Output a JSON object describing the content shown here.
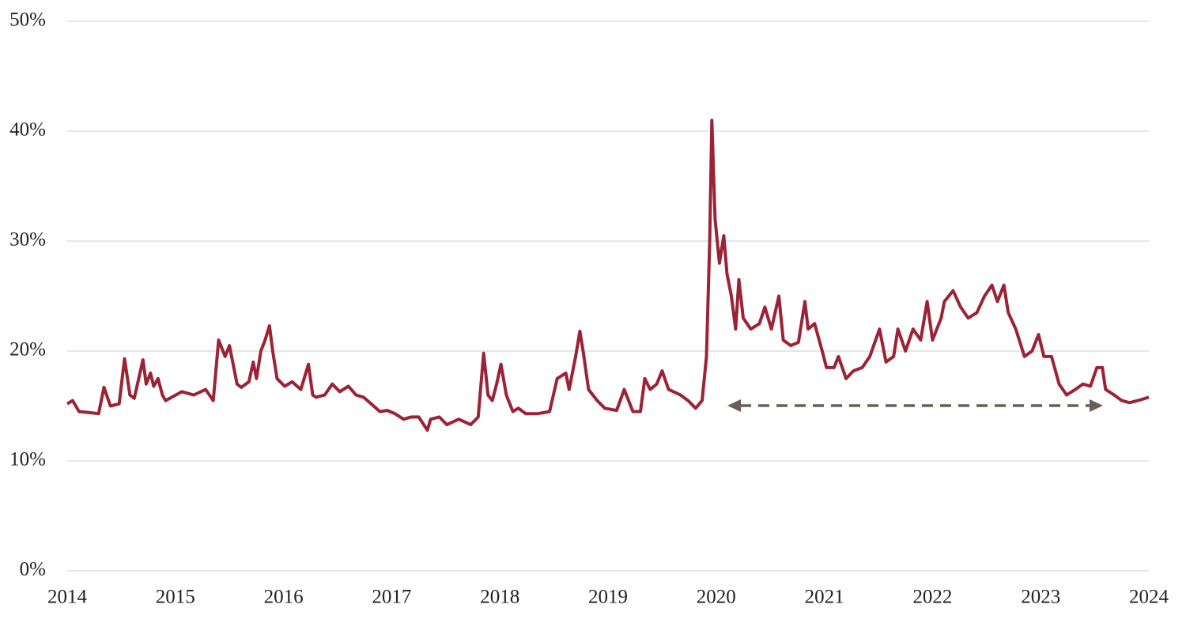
{
  "chart_data": {
    "type": "line",
    "x": [
      2014.0,
      2014.05,
      2014.11,
      2014.2,
      2014.29,
      2014.34,
      2014.4,
      2014.48,
      2014.53,
      2014.58,
      2014.62,
      2014.7,
      2014.73,
      2014.77,
      2014.8,
      2014.84,
      2014.88,
      2014.91,
      2015.06,
      2015.17,
      2015.28,
      2015.35,
      2015.4,
      2015.46,
      2015.5,
      2015.54,
      2015.57,
      2015.61,
      2015.68,
      2015.72,
      2015.75,
      2015.79,
      2015.83,
      2015.87,
      2015.9,
      2015.94,
      2016.01,
      2016.08,
      2016.16,
      2016.23,
      2016.27,
      2016.3,
      2016.38,
      2016.45,
      2016.52,
      2016.6,
      2016.67,
      2016.74,
      2016.81,
      2016.89,
      2016.96,
      2017.03,
      2017.11,
      2017.18,
      2017.25,
      2017.33,
      2017.36,
      2017.44,
      2017.51,
      2017.62,
      2017.73,
      2017.8,
      2017.85,
      2017.89,
      2017.93,
      2017.97,
      2018.01,
      2018.06,
      2018.12,
      2018.17,
      2018.24,
      2018.35,
      2018.46,
      2018.53,
      2018.61,
      2018.64,
      2018.7,
      2018.74,
      2018.77,
      2018.82,
      2018.9,
      2018.97,
      2019.08,
      2019.15,
      2019.23,
      2019.3,
      2019.34,
      2019.39,
      2019.45,
      2019.5,
      2019.56,
      2019.67,
      2019.74,
      2019.81,
      2019.87,
      2019.91,
      2019.94,
      2019.96,
      2019.99,
      2020.03,
      2020.07,
      2020.1,
      2020.14,
      2020.18,
      2020.21,
      2020.25,
      2020.32,
      2020.4,
      2020.45,
      2020.51,
      2020.58,
      2020.62,
      2020.69,
      2020.76,
      2020.82,
      2020.85,
      2020.91,
      2020.98,
      2021.02,
      2021.09,
      2021.13,
      2021.2,
      2021.27,
      2021.35,
      2021.42,
      2021.51,
      2021.57,
      2021.64,
      2021.68,
      2021.75,
      2021.82,
      2021.89,
      2021.95,
      2022.0,
      2022.08,
      2022.11,
      2022.19,
      2022.26,
      2022.33,
      2022.41,
      2022.48,
      2022.55,
      2022.6,
      2022.66,
      2022.7,
      2022.77,
      2022.85,
      2022.92,
      2022.98,
      2023.03,
      2023.1,
      2023.17,
      2023.24,
      2023.32,
      2023.39,
      2023.46,
      2023.52,
      2023.57,
      2023.6,
      2023.68,
      2023.75,
      2023.82,
      2023.9,
      2024.0
    ],
    "series": [
      {
        "color": "#9b2335",
        "values": [
          15.2,
          15.5,
          14.5,
          14.4,
          14.3,
          16.7,
          15.0,
          15.2,
          19.3,
          16.0,
          15.7,
          19.2,
          17.0,
          18.0,
          16.8,
          17.5,
          16.0,
          15.5,
          16.3,
          16.0,
          16.5,
          15.5,
          21.0,
          19.5,
          20.5,
          18.5,
          17.0,
          16.7,
          17.2,
          19.0,
          17.5,
          20.0,
          21.0,
          22.3,
          20.0,
          17.5,
          16.8,
          17.2,
          16.5,
          18.8,
          16.0,
          15.8,
          16.0,
          17.0,
          16.3,
          16.8,
          16.0,
          15.8,
          15.2,
          14.5,
          14.6,
          14.3,
          13.8,
          14.0,
          14.0,
          12.8,
          13.8,
          14.0,
          13.3,
          13.8,
          13.3,
          14.0,
          19.8,
          16.0,
          15.5,
          17.0,
          18.8,
          16.0,
          14.5,
          14.8,
          14.3,
          14.3,
          14.5,
          17.5,
          18.0,
          16.5,
          19.5,
          21.8,
          20.0,
          16.5,
          15.5,
          14.8,
          14.6,
          16.5,
          14.5,
          14.5,
          17.5,
          16.5,
          17.0,
          18.2,
          16.5,
          16.0,
          15.5,
          14.8,
          15.5,
          19.5,
          30.0,
          41.0,
          32.0,
          28.0,
          30.5,
          27.0,
          25.0,
          22.0,
          26.5,
          23.0,
          22.0,
          22.5,
          24.0,
          22.0,
          25.0,
          21.0,
          20.5,
          20.8,
          24.5,
          22.0,
          22.5,
          20.0,
          18.5,
          18.5,
          19.5,
          17.5,
          18.2,
          18.5,
          19.5,
          22.0,
          19.0,
          19.5,
          22.0,
          20.0,
          22.0,
          21.0,
          24.5,
          21.0,
          23.0,
          24.5,
          25.5,
          24.0,
          23.0,
          23.5,
          25.0,
          26.0,
          24.5,
          26.0,
          23.5,
          22.0,
          19.5,
          20.0,
          21.5,
          19.5,
          19.5,
          17.0,
          16.0,
          16.5,
          17.0,
          16.8,
          18.5,
          18.5,
          16.5,
          16.0,
          15.5,
          15.3,
          15.5,
          15.8
        ]
      }
    ],
    "xlim": [
      2014,
      2024
    ],
    "xticks": [
      2014,
      2015,
      2016,
      2017,
      2018,
      2019,
      2020,
      2021,
      2022,
      2023,
      2024
    ],
    "ylim": [
      0,
      50
    ],
    "yticks": [
      {
        "value": 0,
        "label": "0%"
      },
      {
        "value": 10,
        "label": "10%"
      },
      {
        "value": 20,
        "label": "20%"
      },
      {
        "value": 30,
        "label": "30%"
      },
      {
        "value": 40,
        "label": "40%"
      },
      {
        "value": 50,
        "label": "50%"
      }
    ],
    "grid": true
  }
}
